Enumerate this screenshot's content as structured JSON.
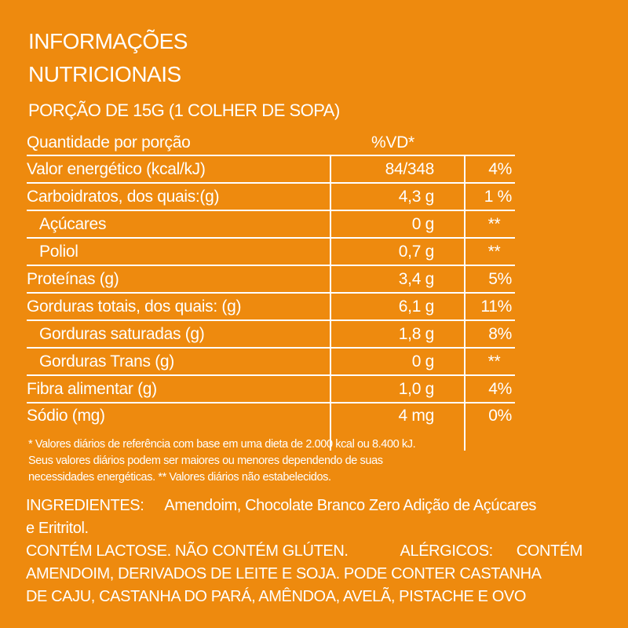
{
  "title": {
    "line1": "INFORMAÇÕES",
    "line2": "NUTRICIONAIS"
  },
  "portion": "PORÇÃO DE 15G (1 COLHER DE SOPA)",
  "table": {
    "header": {
      "name": "Quantidade por porção",
      "vd": "%VD*"
    },
    "rows": [
      {
        "name": "Valor energético (kcal/kJ)",
        "qty": "84/348",
        "vd": "4%"
      },
      {
        "name": "Carboidratos, dos quais:(g)",
        "qty": "4,3 g",
        "vd": "1 %"
      },
      {
        "name": "Açúcares",
        "qty": "0 g",
        "vd": "**"
      },
      {
        "name": "Poliol",
        "qty": "0,7 g",
        "vd": "**"
      },
      {
        "name": "Proteínas (g)",
        "qty": "3,4 g",
        "vd": "5%"
      },
      {
        "name": "Gorduras totais, dos quais: (g)",
        "qty": "6,1 g",
        "vd": "11%"
      },
      {
        "name": "Gorduras saturadas (g)",
        "qty": "1,8 g",
        "vd": "8%"
      },
      {
        "name": "Gorduras Trans (g)",
        "qty": "0 g",
        "vd": "**"
      },
      {
        "name": "Fibra alimentar (g)",
        "qty": "1,0 g",
        "vd": "4%"
      },
      {
        "name": "Sódio (mg)",
        "qty": "4 mg",
        "vd": "0%"
      }
    ]
  },
  "footnote": {
    "line1": "* Valores diários de referência com base em uma dieta de 2.000 kcal ou 8.400 kJ.",
    "line2": "Seus valores diários podem ser maiores ou menores dependendo de suas",
    "line3": "necessidades energéticas. ** Valores diários não estabelecidos."
  },
  "ingredients": {
    "label": "INGREDIENTES:",
    "text1": "Amendoim, Chocolate Branco Zero Adição de Açúcares",
    "text2": "e Eritritol.",
    "lactose": "CONTÉM LACTOSE. NÃO CONTÉM GLÚTEN.",
    "allergen_label": "ALÉRGICOS:",
    "allergen1": "CONTÉM",
    "allergen2": "AMENDOIM, DERIVADOS DE LEITE E SOJA. PODE CONTER CASTANHA",
    "allergen3": "DE CAJU, CASTANHA DO PARÁ, AMÊNDOA, AVELÃ, PISTACHE E OVO"
  }
}
